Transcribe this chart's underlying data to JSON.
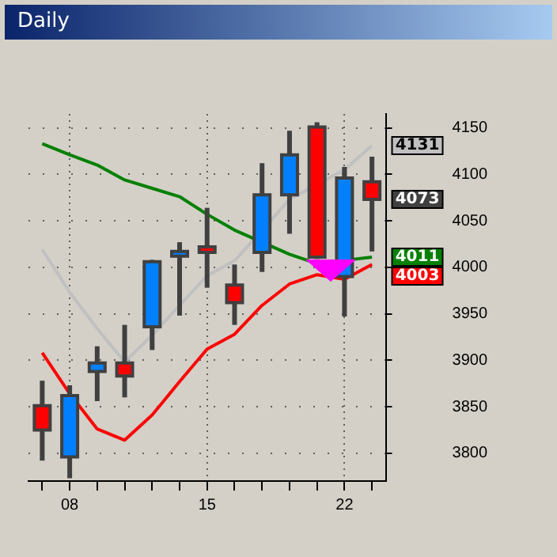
{
  "chart_data": {
    "type": "candlestick",
    "title": "Daily",
    "categories": [
      null,
      "08",
      null,
      null,
      null,
      null,
      "15",
      null,
      null,
      null,
      null,
      "22",
      null
    ],
    "ohlc": [
      [
        3851,
        3878,
        3792,
        3825
      ],
      [
        3796,
        3873,
        3773,
        3862
      ],
      [
        3888,
        3915,
        3856,
        3897
      ],
      [
        3897,
        3938,
        3860,
        3883
      ],
      [
        3936,
        4008,
        3911,
        4006
      ],
      [
        4012,
        4027,
        3948,
        4017
      ],
      [
        4022,
        4064,
        3978,
        4016
      ],
      [
        3981,
        4003,
        3938,
        3962
      ],
      [
        4016,
        4112,
        3995,
        4078
      ],
      [
        4078,
        4147,
        4036,
        4121
      ],
      [
        4151,
        4156,
        4009,
        4011
      ],
      [
        3990,
        4108,
        3947,
        4096
      ],
      [
        4092,
        4119,
        4017,
        4073
      ]
    ],
    "colors": [
      "#ff0000",
      "#0080ff",
      "#0080ff",
      "#ff0000",
      "#0080ff",
      "#0080ff",
      "#ff0000",
      "#ff0000",
      "#0080ff",
      "#0080ff",
      "#ff0000",
      "#0080ff",
      "#ff0000"
    ],
    "series": [
      {
        "type": "line",
        "color": "#008000",
        "values": [
          4133,
          4121,
          4110,
          4094,
          4085,
          4076,
          4057,
          4040,
          null,
          4014,
          4004,
          null,
          4011
        ],
        "value_labels": [
          null,
          null,
          null,
          null,
          null,
          null,
          null,
          null,
          null,
          null,
          null,
          null,
          "4011"
        ]
      },
      {
        "type": "line",
        "color": "#c0c0c0",
        "values": [
          4019,
          3973,
          3934,
          3898,
          3927,
          3959,
          3991,
          4007,
          null,
          4073,
          null,
          4105,
          4131
        ],
        "value_labels": [
          null,
          null,
          null,
          null,
          null,
          null,
          null,
          null,
          null,
          null,
          null,
          null,
          "4131"
        ]
      },
      {
        "type": "line",
        "color": "#ff0000",
        "values": [
          3908,
          3864,
          3826,
          3814,
          3841,
          3877,
          3912,
          3928,
          3959,
          3982,
          3992,
          3987,
          4003
        ],
        "value_labels": [
          null,
          null,
          null,
          null,
          null,
          null,
          null,
          null,
          null,
          null,
          null,
          null,
          "4003"
        ]
      }
    ],
    "ylim": [
      3770,
      4165
    ],
    "yticks": [
      3800,
      3850,
      3900,
      3950,
      4000,
      4050,
      4100,
      4150
    ],
    "grid": true,
    "annotations": [
      "4073"
    ]
  }
}
